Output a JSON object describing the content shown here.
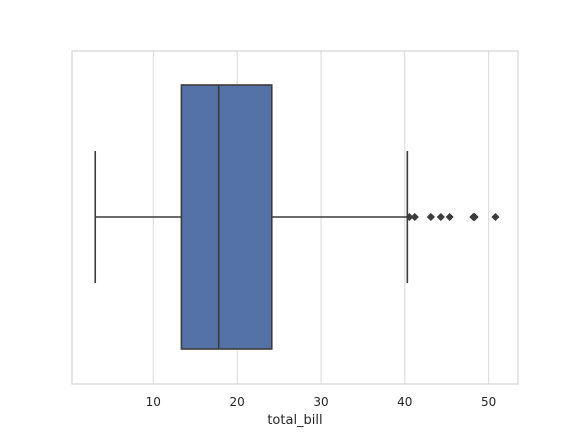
{
  "chart_data": {
    "type": "box",
    "orientation": "horizontal",
    "title": "",
    "xlabel": "total_bill",
    "ylabel": "",
    "xlim": [
      0.3,
      53.5
    ],
    "x_ticks": [
      10,
      20,
      30,
      40,
      50
    ],
    "grid": "vertical",
    "box": {
      "whisker_low": 3.07,
      "q1": 13.35,
      "median": 17.8,
      "q3": 24.13,
      "whisker_high": 40.3,
      "outliers": [
        40.55,
        41.19,
        43.11,
        44.3,
        45.35,
        48.17,
        48.27,
        48.33,
        50.81
      ]
    },
    "colors": {
      "box_fill": "#5572a6",
      "line": "#3c3c3c",
      "grid": "#d9d9d9",
      "frame": "#cccccc",
      "background": "#ffffff"
    }
  }
}
